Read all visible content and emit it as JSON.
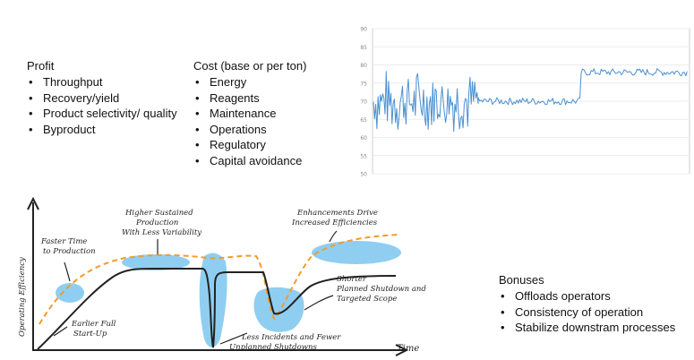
{
  "profit": {
    "heading": "Profit",
    "items": [
      "Throughput",
      "Recovery/yield",
      "Product selectivity/ quality",
      "Byproduct"
    ]
  },
  "cost": {
    "heading": "Cost (base or per ton)",
    "items": [
      "Energy",
      "Reagents",
      "Maintenance",
      "Operations",
      "Regulatory",
      "Capital avoidance"
    ]
  },
  "bonuses": {
    "heading": "Bonuses",
    "items": [
      "Offloads operators",
      "Consistency of operation",
      "Stabilize downstram processes"
    ]
  },
  "trend_chart": {
    "yticks": [
      "90",
      "85",
      "80",
      "75",
      "70",
      "65",
      "60",
      "55",
      "50"
    ],
    "ylim": [
      50,
      90
    ],
    "line_color": "#4a90d0",
    "segments": [
      {
        "phase": "variable",
        "mean": 70,
        "range": [
          60,
          79
        ]
      },
      {
        "phase": "stabilized",
        "mean": 70,
        "range": [
          69,
          71
        ]
      },
      {
        "phase": "optimized",
        "mean": 78,
        "range": [
          77,
          79
        ]
      }
    ]
  },
  "sketch": {
    "ylabel": "Operating Efficiency",
    "xlabel": "Time",
    "annotations": {
      "faster": [
        "Faster Time",
        "to Production"
      ],
      "higher": [
        "Higher Sustained",
        "Production",
        "With Less Variability"
      ],
      "enhance": [
        "Enhancements Drive",
        "Increased Efficiencies"
      ],
      "earlier": [
        "Earlier Full",
        "Start-Up"
      ],
      "less": [
        "Less Incidents and Fewer",
        "Unplanned Shutdowns"
      ],
      "shorter": [
        "Shorter",
        "Planned Shutdown and",
        "Targeted Scope"
      ]
    },
    "colors": {
      "dashed": "#f39a2e",
      "blob": "#7cc6ee",
      "line": "#222222"
    }
  }
}
